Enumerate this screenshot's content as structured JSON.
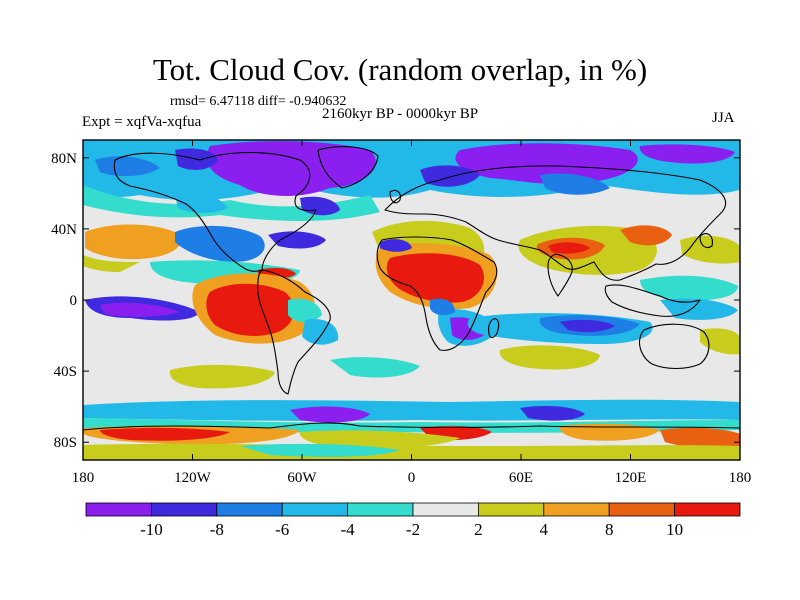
{
  "title": "Tot. Cloud Cov. (random overlap, in %)",
  "stats_label": "rmsd= 6.47118 diff= -0.940632",
  "period_label": "2160kyr BP - 0000kyr BP",
  "experiment_label": "Expt = xqfVa-xqfua",
  "season_label": "JJA",
  "y_ticks": [
    {
      "label": "80N",
      "lat": 80
    },
    {
      "label": "40N",
      "lat": 40
    },
    {
      "label": "0",
      "lat": 0
    },
    {
      "label": "40S",
      "lat": -40
    },
    {
      "label": "80S",
      "lat": -80
    }
  ],
  "x_ticks": [
    {
      "label": "180",
      "lon": -180
    },
    {
      "label": "120W",
      "lon": -120
    },
    {
      "label": "60W",
      "lon": -60
    },
    {
      "label": "0",
      "lon": 0
    },
    {
      "label": "60E",
      "lon": 60
    },
    {
      "label": "120E",
      "lon": 120
    },
    {
      "label": "180",
      "lon": 180
    }
  ],
  "colorbar": {
    "boundaries": [
      -10,
      -8,
      -6,
      -4,
      -2,
      2,
      4,
      8,
      10
    ],
    "labels": [
      "-10",
      "-8",
      "-6",
      "-4",
      "-2",
      "2",
      "4",
      "8",
      "10"
    ],
    "colors": [
      "#8a1ff0",
      "#3f2ae0",
      "#1e7ee6",
      "#22b8e8",
      "#33dccc",
      "#e8e8e8",
      "#c8cc1c",
      "#f0a020",
      "#e86010",
      "#e81a10"
    ]
  }
}
